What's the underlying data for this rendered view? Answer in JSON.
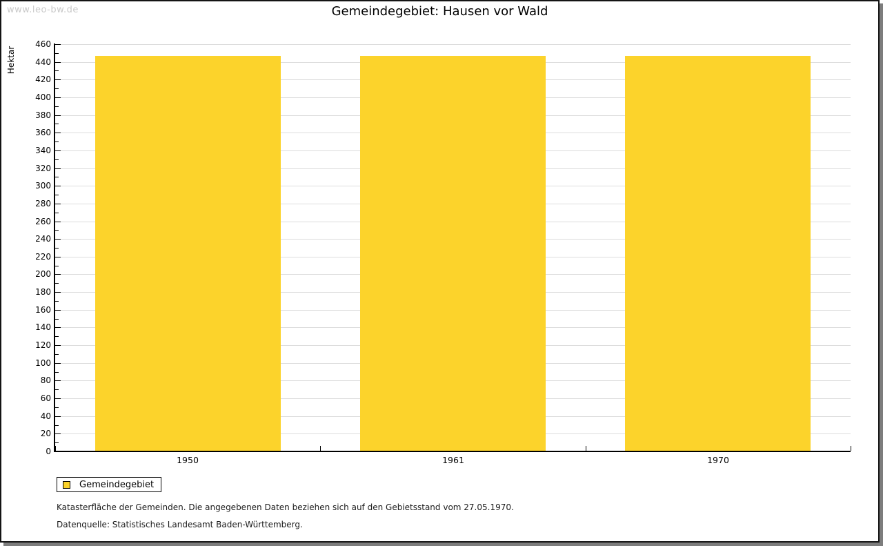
{
  "watermark": "www.leo-bw.de",
  "title": "Gemeindegebiet: Hausen vor Wald",
  "chart_data": {
    "type": "bar",
    "title": "Gemeindegebiet: Hausen vor Wald",
    "categories": [
      "1950",
      "1961",
      "1970"
    ],
    "series": [
      {
        "name": "Gemeindegebiet",
        "values": [
          447,
          447,
          447
        ],
        "color": "#FCD32B"
      }
    ],
    "xlabel": "",
    "ylabel": "Hektar",
    "ylim": [
      0,
      460
    ],
    "ytick_step": 20,
    "yminor_step": 10,
    "grid": true,
    "grid_color": "#dcdcdc",
    "axis_color": "#000000",
    "legend_position": "bottom-left"
  },
  "legend": {
    "items": [
      {
        "label": "Gemeindegebiet",
        "color": "#FCD32B"
      }
    ]
  },
  "footnotes": [
    "Katasterfläche der Gemeinden. Die angegebenen Daten beziehen sich auf den Gebietsstand vom 27.05.1970.",
    "Datenquelle: Statistisches Landesamt Baden-Württemberg."
  ]
}
